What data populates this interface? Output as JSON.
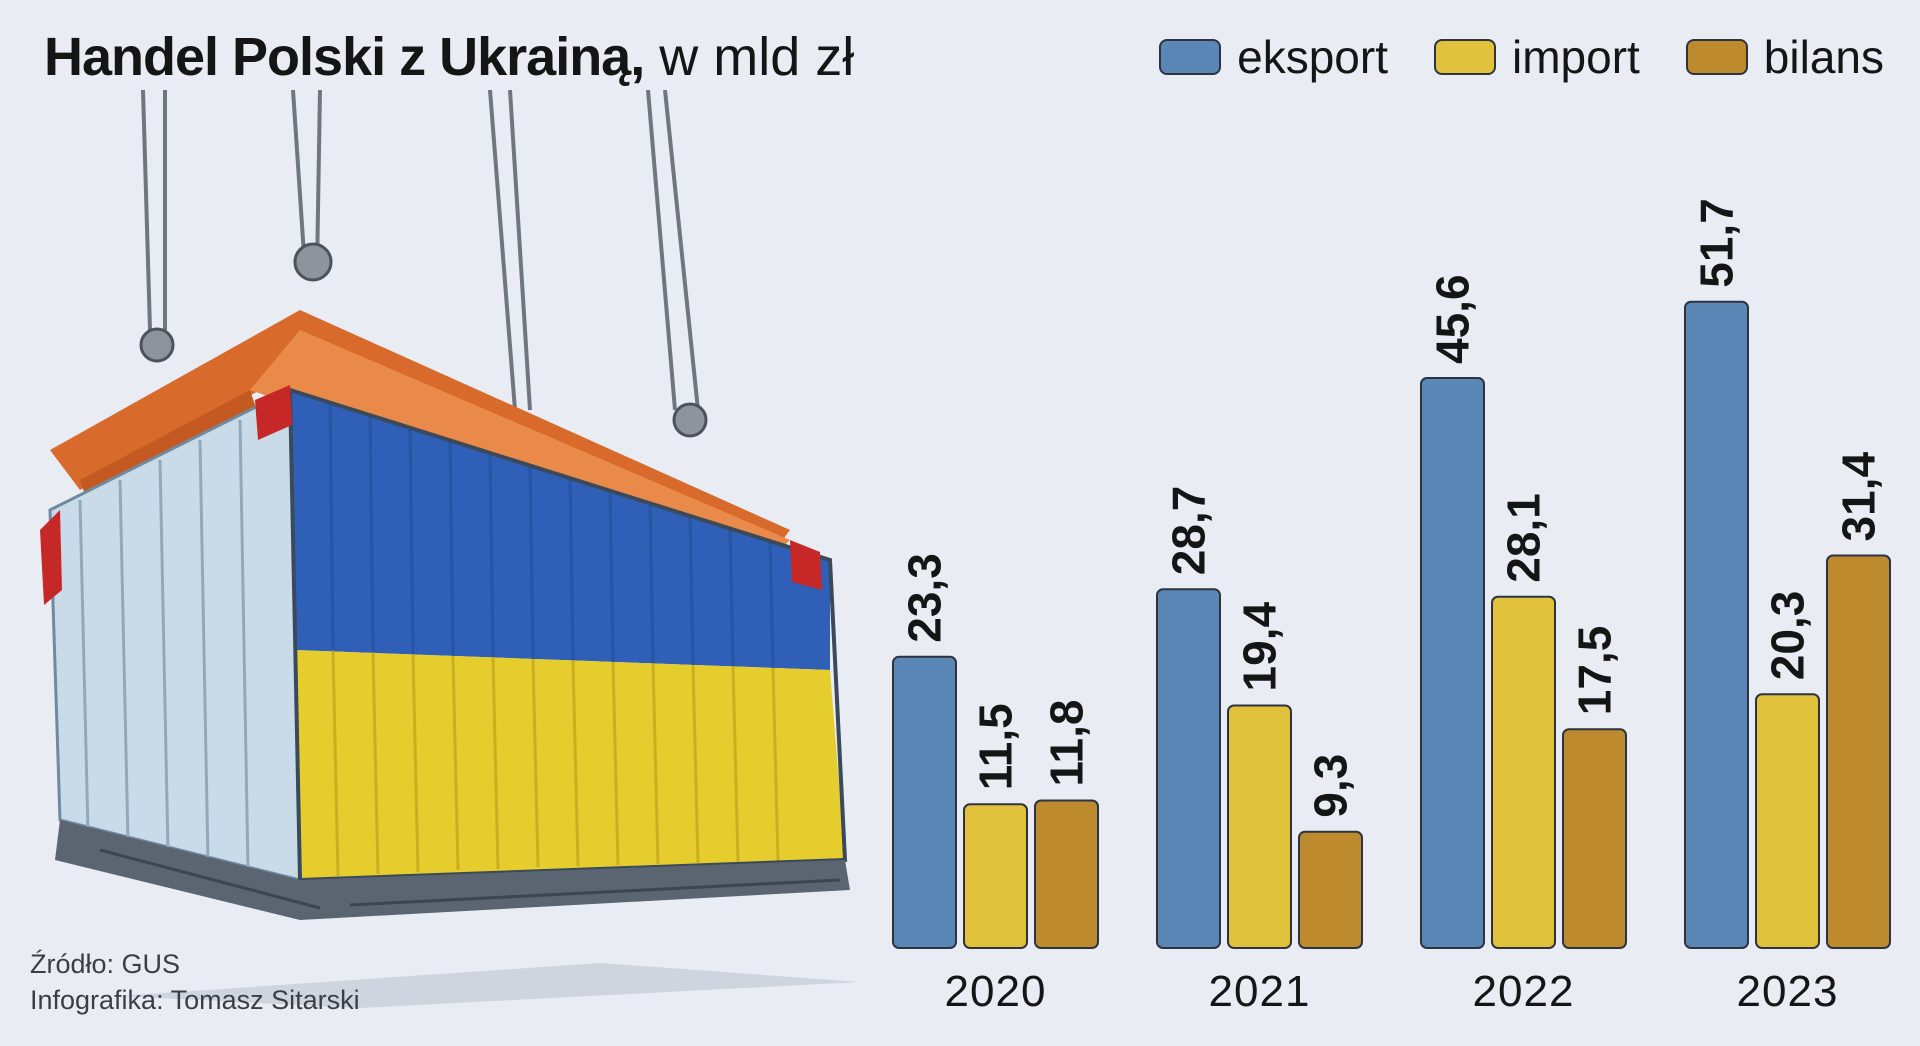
{
  "title": {
    "main": "Handel Polski z Ukrainą,",
    "unit": "w mld zł"
  },
  "legend": [
    {
      "label": "eksport",
      "color": "#5b87b7"
    },
    {
      "label": "import",
      "color": "#e0c23c"
    },
    {
      "label": "bilans",
      "color": "#bd8a2d"
    }
  ],
  "footer": {
    "source": "Źródło: GUS",
    "credit": "Infografika: Tomasz Sitarski"
  },
  "chart_data": {
    "type": "bar",
    "categories": [
      "2020",
      "2021",
      "2022",
      "2023"
    ],
    "series": [
      {
        "name": "eksport",
        "values": [
          23.3,
          28.7,
          45.6,
          51.7
        ],
        "labels": [
          "23,3",
          "28,7",
          "45,6",
          "51,7"
        ]
      },
      {
        "name": "import",
        "values": [
          11.5,
          19.4,
          28.1,
          20.3
        ],
        "labels": [
          "11,5",
          "19,4",
          "28,1",
          "20,3"
        ]
      },
      {
        "name": "bilans",
        "values": [
          11.8,
          9.3,
          17.5,
          31.4
        ],
        "labels": [
          "11,8",
          "9,3",
          "17,5",
          "31,4"
        ]
      }
    ],
    "ylim": [
      0,
      55
    ],
    "grid": false,
    "legend_position": "top-right"
  },
  "illustration": {
    "icon": "shipping-container-ukraine-flag-icon",
    "flag_colors": [
      "#2f5fb6",
      "#e6cd2e"
    ]
  }
}
